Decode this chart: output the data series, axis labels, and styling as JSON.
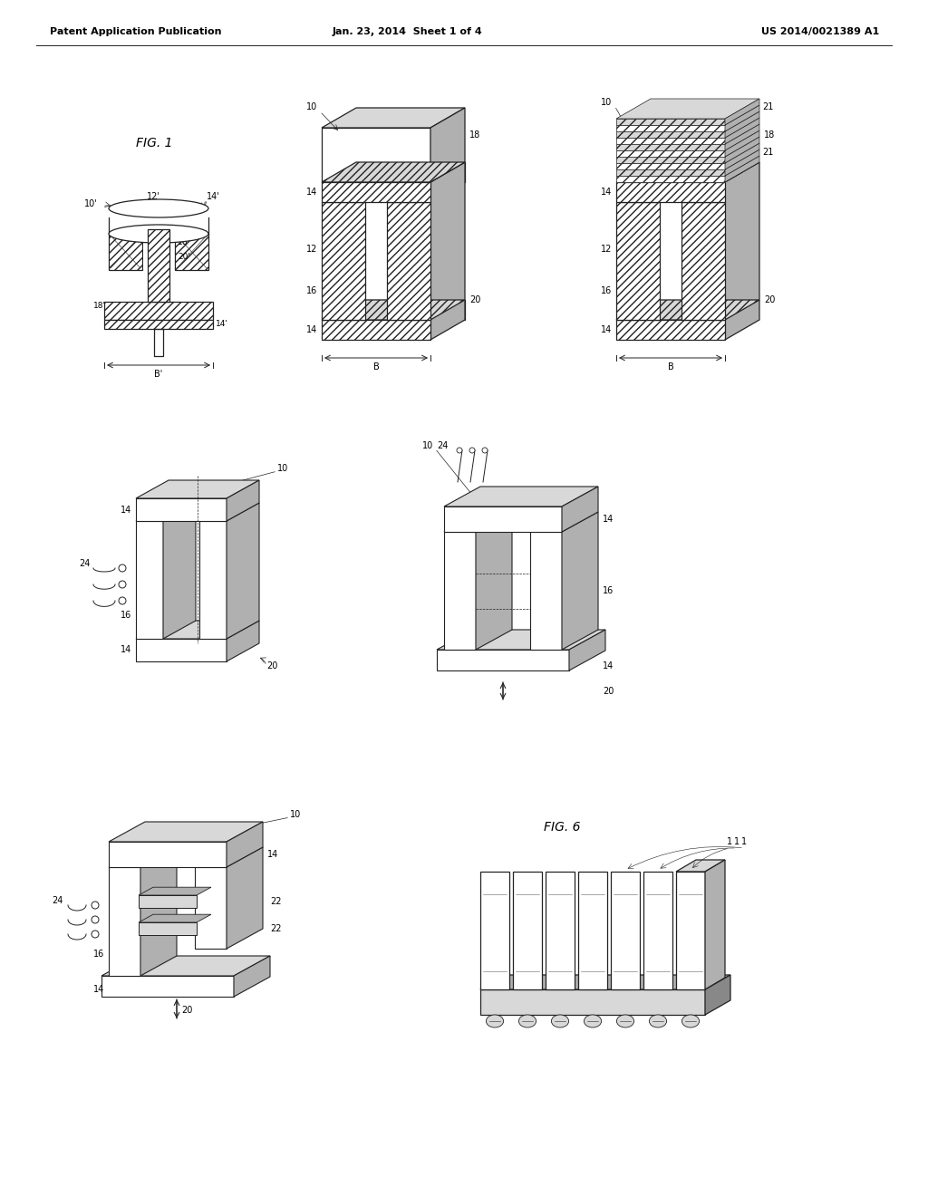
{
  "background_color": "#ffffff",
  "header_left": "Patent Application Publication",
  "header_center": "Jan. 23, 2014  Sheet 1 of 4",
  "header_right": "US 2014/0021389 A1",
  "line_color": "#222222",
  "light_gray": "#d8d8d8",
  "mid_gray": "#b0b0b0",
  "dark_gray": "#888888",
  "label_fontsize": 7,
  "fig_label_fontsize": 10
}
